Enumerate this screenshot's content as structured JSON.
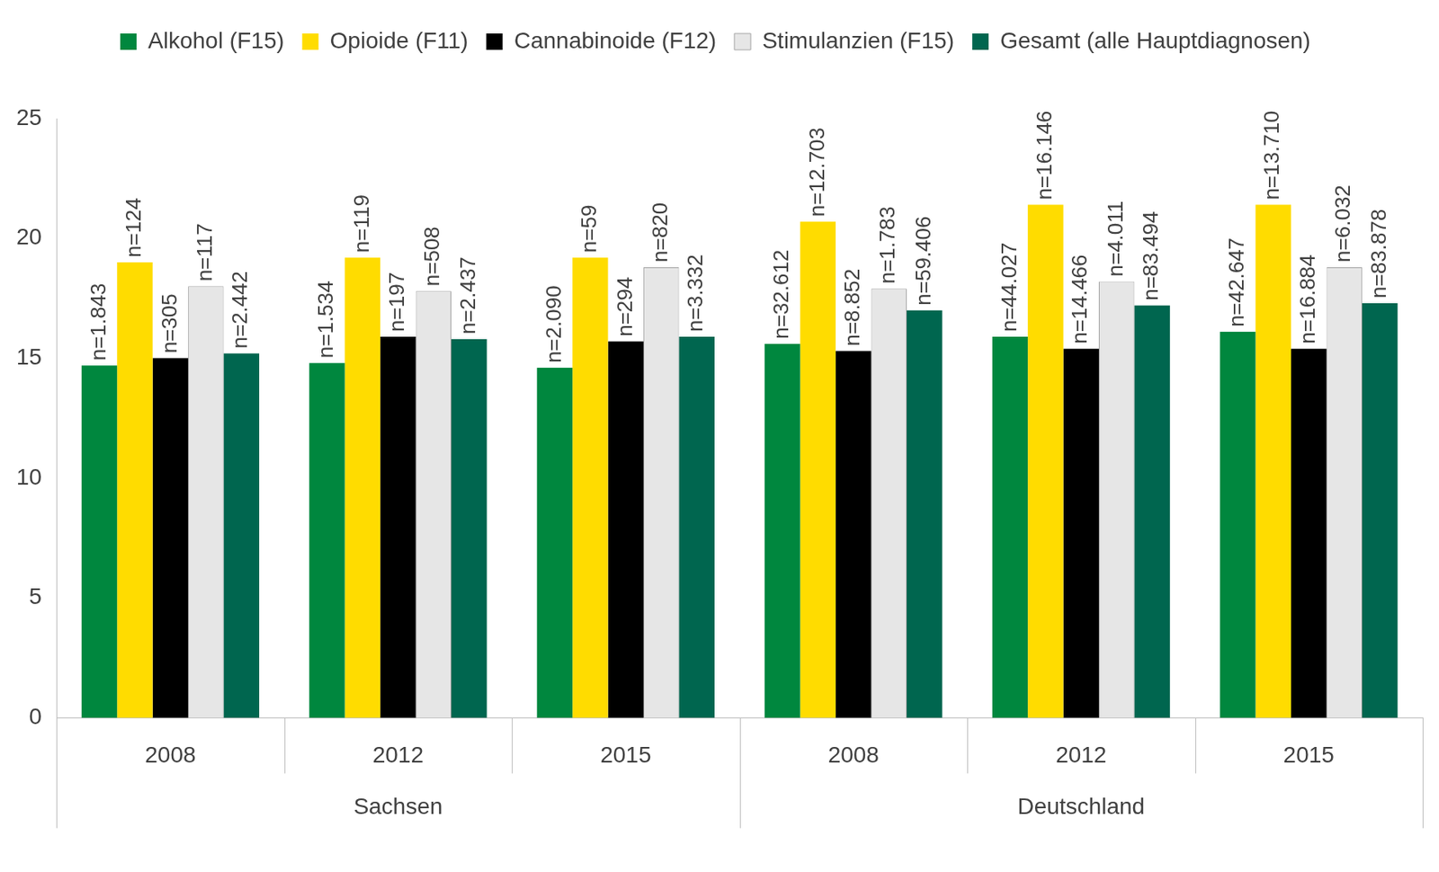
{
  "chart_data": {
    "type": "bar",
    "categories": [
      "2008",
      "2012",
      "2015",
      "2008",
      "2012",
      "2015"
    ],
    "category_groups": [
      "Sachsen",
      "Sachsen",
      "Sachsen",
      "Deutschland",
      "Deutschland",
      "Deutschland"
    ],
    "series": [
      {
        "name": "Alkohol (F15)",
        "color": "#00873e",
        "values": [
          14.7,
          14.8,
          14.6,
          15.6,
          15.9,
          16.1
        ],
        "n_labels": [
          "n=1.843",
          "n=1.534",
          "n=2.090",
          "n=32.612",
          "n=44.027",
          "n=42.647"
        ]
      },
      {
        "name": "Opioide (F11)",
        "color": "#ffdc00",
        "values": [
          19.0,
          19.2,
          19.2,
          20.7,
          21.4,
          21.4
        ],
        "n_labels": [
          "n=124",
          "n=119",
          "n=59",
          "n=12.703",
          "n=16.146",
          "n=13.710"
        ]
      },
      {
        "name": "Cannabinoide (F12)",
        "color": "#000000",
        "values": [
          15.0,
          15.9,
          15.7,
          15.3,
          15.4,
          15.4
        ],
        "n_labels": [
          "n=305",
          "n=197",
          "n=294",
          "n=8.852",
          "n=14.466",
          "n=16.884"
        ]
      },
      {
        "name": "Stimulanzien (F15)",
        "color": "#e6e6e6",
        "values": [
          18.0,
          17.8,
          18.8,
          17.9,
          18.2,
          18.8
        ],
        "n_labels": [
          "n=117",
          "n=508",
          "n=820",
          "n=1.783",
          "n=4.011",
          "n=6.032"
        ]
      },
      {
        "name": "Gesamt (alle Hauptdiagnosen)",
        "color": "#00664f",
        "values": [
          15.2,
          15.8,
          15.9,
          17.0,
          17.2,
          17.3
        ],
        "n_labels": [
          "n=2.442",
          "n=2.437",
          "n=3.332",
          "n=59.406",
          "n=83.494",
          "n=83.878"
        ]
      }
    ],
    "ylim": [
      0,
      25
    ],
    "yticks": [
      0,
      5,
      10,
      15,
      20,
      25
    ],
    "grid": false,
    "legend": "top"
  }
}
